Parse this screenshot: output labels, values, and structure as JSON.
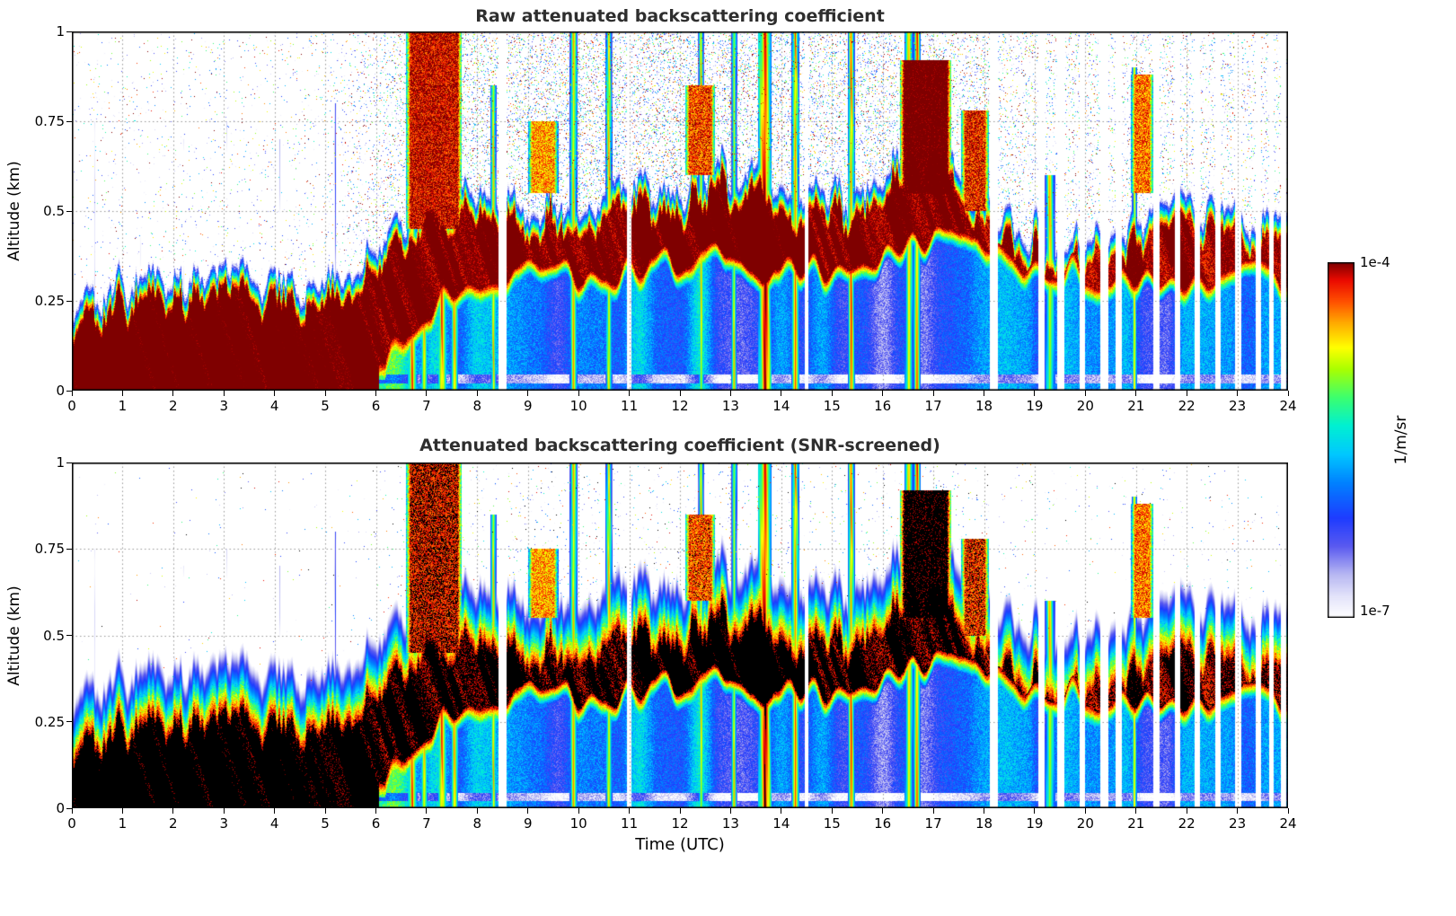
{
  "figure": {
    "background": "#ffffff"
  },
  "chart_data": {
    "type": "heatmap",
    "xlabel": "Time (UTC)",
    "ylabel": "Altitude (km)",
    "xlim": [
      0,
      24
    ],
    "ylim": [
      0,
      1
    ],
    "x_ticks": [
      0,
      1,
      2,
      3,
      4,
      5,
      6,
      7,
      8,
      9,
      10,
      11,
      12,
      13,
      14,
      15,
      16,
      17,
      18,
      19,
      20,
      21,
      22,
      23,
      24
    ],
    "y_ticks": [
      0,
      0.25,
      0.5,
      0.75,
      1
    ],
    "y_tick_labels": [
      "0",
      "0.25",
      "0.5",
      "0.75",
      "1"
    ],
    "grid": "dotted",
    "value_scale": "log10(1/m/sr)",
    "colorbar": {
      "label": "1/m/sr",
      "max_label": "1e-4",
      "min_label": "1e-7",
      "log_min": -7,
      "log_max": -4
    },
    "colormap_stops": [
      [
        0.0,
        "#ffffff"
      ],
      [
        0.06,
        "#e3e3fa"
      ],
      [
        0.12,
        "#b8b8f2"
      ],
      [
        0.2,
        "#5a5af0"
      ],
      [
        0.28,
        "#1e3cff"
      ],
      [
        0.38,
        "#0082ff"
      ],
      [
        0.46,
        "#00c8ff"
      ],
      [
        0.54,
        "#00f0d2"
      ],
      [
        0.62,
        "#3cff6e"
      ],
      [
        0.7,
        "#aaff00"
      ],
      [
        0.76,
        "#ffff00"
      ],
      [
        0.83,
        "#ffaa00"
      ],
      [
        0.89,
        "#ff5000"
      ],
      [
        0.95,
        "#eb0a00"
      ],
      [
        1.0,
        "#7f0000"
      ]
    ],
    "plots": [
      {
        "id": "raw",
        "title": "Raw attenuated backscattering coefficient",
        "overload_color": "#7f0000",
        "noise_screened": false
      },
      {
        "id": "screened",
        "title": "Attenuated backscattering coefficient (SNR-screened)",
        "overload_color": "#000000",
        "noise_screened": true
      }
    ],
    "field_model": {
      "hours": [
        0,
        1,
        2,
        3,
        4,
        5,
        6,
        7,
        8,
        9,
        10,
        11,
        12,
        13,
        14,
        15,
        16,
        17,
        18,
        19,
        20,
        21,
        22,
        23,
        24
      ],
      "layer_base_km": [
        0,
        0,
        0,
        0,
        0,
        0,
        0.02,
        0.2,
        0.3,
        0.3,
        0.3,
        0.32,
        0.33,
        0.35,
        0.3,
        0.33,
        0.35,
        0.38,
        0.4,
        0.32,
        0.3,
        0.28,
        0.3,
        0.3,
        0.28
      ],
      "layer_top_km": [
        0.27,
        0.3,
        0.3,
        0.32,
        0.3,
        0.32,
        0.38,
        0.55,
        0.55,
        0.52,
        0.55,
        0.55,
        0.6,
        0.62,
        0.58,
        0.55,
        0.62,
        0.68,
        0.55,
        0.45,
        0.42,
        0.52,
        0.5,
        0.5,
        0.45
      ],
      "layer_peak_log10": [
        -3.7,
        -3.7,
        -3.7,
        -3.7,
        -3.7,
        -3.7,
        -3.75,
        -3.8,
        -3.8,
        -3.8,
        -3.8,
        -3.8,
        -3.8,
        -3.8,
        -3.8,
        -3.8,
        -3.8,
        -3.8,
        -3.85,
        -3.95,
        -3.95,
        -3.9,
        -3.9,
        -3.9,
        -3.9
      ],
      "subcloud_log10": [
        -4,
        -4,
        -4,
        -4,
        -4,
        -4,
        -5,
        -5.9,
        -6,
        -6,
        -5.9,
        -5.6,
        -5.8,
        -6,
        -6,
        -6,
        -6.1,
        -6.1,
        -6.1,
        -6,
        -6,
        -6.1,
        -6.1,
        -6.1,
        -6.1
      ],
      "noise_density": [
        0.05,
        0.07,
        0.07,
        0.07,
        0.07,
        0.1,
        0.3,
        0.55,
        0.55,
        0.6,
        0.65,
        0.65,
        0.65,
        0.65,
        0.6,
        0.55,
        0.55,
        0.5,
        0.45,
        0.3,
        0.3,
        0.35,
        0.3,
        0.3,
        0.25
      ],
      "data_gaps_utc": [
        [
          8.42,
          8.58
        ],
        [
          10.96,
          11.04
        ],
        [
          14.46,
          14.54
        ],
        [
          18.12,
          18.28
        ],
        [
          19.08,
          19.2
        ],
        [
          19.45,
          19.58
        ],
        [
          19.88,
          20.0
        ],
        [
          20.3,
          20.45
        ],
        [
          20.6,
          20.72
        ],
        [
          21.35,
          21.47
        ],
        [
          21.76,
          21.87
        ],
        [
          22.16,
          22.27
        ],
        [
          22.56,
          22.67
        ],
        [
          22.96,
          23.07
        ],
        [
          23.36,
          23.46
        ],
        [
          23.62,
          23.72
        ],
        [
          23.86,
          23.96
        ]
      ],
      "precip_streaks": [
        {
          "t": 0.45,
          "w": 0.03,
          "log10": -6.2,
          "zmax": 0.75
        },
        {
          "t": 1.35,
          "w": 0.03,
          "log10": -6.3,
          "zmax": 0.7
        },
        {
          "t": 2.2,
          "w": 0.03,
          "log10": -6.3,
          "zmax": 0.7
        },
        {
          "t": 3.05,
          "w": 0.03,
          "log10": -6.2,
          "zmax": 0.75
        },
        {
          "t": 4.1,
          "w": 0.03,
          "log10": -6.3,
          "zmax": 0.7
        },
        {
          "t": 5.2,
          "w": 0.04,
          "log10": -6.0,
          "zmax": 0.8
        },
        {
          "t": 6.72,
          "w": 0.1,
          "log10": -4.05
        },
        {
          "t": 6.95,
          "w": 0.08,
          "log10": -4.15
        },
        {
          "t": 7.3,
          "w": 0.1,
          "log10": -4.1
        },
        {
          "t": 7.55,
          "w": 0.08,
          "log10": -4.15
        },
        {
          "t": 8.32,
          "w": 0.06,
          "log10": -4.3,
          "zmax": 0.85
        },
        {
          "t": 9.9,
          "w": 0.08,
          "log10": -4.15
        },
        {
          "t": 10.6,
          "w": 0.07,
          "log10": -4.25
        },
        {
          "t": 12.42,
          "w": 0.06,
          "log10": -4.3
        },
        {
          "t": 13.07,
          "w": 0.06,
          "log10": -4.3
        },
        {
          "t": 13.68,
          "w": 0.13,
          "log10": -3.7
        },
        {
          "t": 14.28,
          "w": 0.08,
          "log10": -4.05
        },
        {
          "t": 15.38,
          "w": 0.07,
          "log10": -4.05
        },
        {
          "t": 16.52,
          "w": 0.08,
          "log10": -3.9
        },
        {
          "t": 16.68,
          "w": 0.07,
          "log10": -3.9
        },
        {
          "t": 19.3,
          "w": 0.11,
          "log10": -4.35,
          "zmax": 0.6
        },
        {
          "t": 20.97,
          "w": 0.05,
          "log10": -4.3,
          "zmax": 0.9
        }
      ],
      "cloud_patches": [
        {
          "t0": 16.35,
          "t1": 17.35,
          "base": 0.55,
          "top": 0.92,
          "log10": -3.75
        },
        {
          "t0": 6.6,
          "t1": 7.7,
          "base": 0.45,
          "top": 1.0,
          "log10": -4.1
        },
        {
          "t0": 9.0,
          "t1": 9.6,
          "base": 0.55,
          "top": 0.75,
          "log10": -4.5
        },
        {
          "t0": 12.1,
          "t1": 12.7,
          "base": 0.6,
          "top": 0.85,
          "log10": -4.3
        },
        {
          "t0": 17.55,
          "t1": 18.1,
          "base": 0.5,
          "top": 0.78,
          "log10": -4.2
        },
        {
          "t0": 20.9,
          "t1": 21.35,
          "base": 0.55,
          "top": 0.88,
          "log10": -4.4
        }
      ]
    }
  }
}
